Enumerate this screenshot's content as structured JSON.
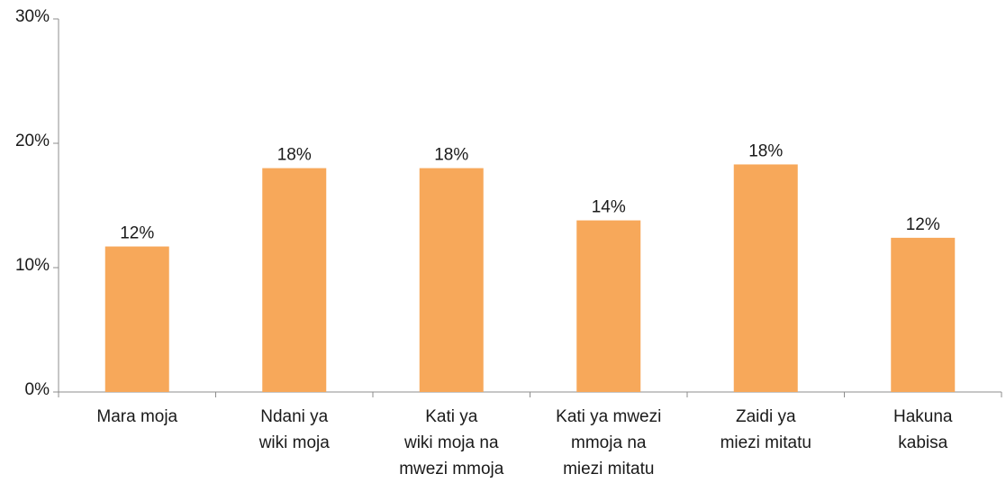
{
  "chart_data": {
    "type": "bar",
    "categories": [
      [
        "Mara moja"
      ],
      [
        "Ndani ya",
        "wiki moja"
      ],
      [
        "Kati ya",
        "wiki moja na",
        "mwezi mmoja"
      ],
      [
        "Kati ya mwezi",
        "mmoja na",
        "miezi mitatu"
      ],
      [
        "Zaidi ya",
        "miezi mitatu"
      ],
      [
        "Hakuna",
        "kabisa"
      ]
    ],
    "values": [
      11.7,
      18.0,
      18.0,
      13.8,
      18.3,
      12.4
    ],
    "value_labels": [
      "12%",
      "18%",
      "18%",
      "14%",
      "18%",
      "12%"
    ],
    "color": "#f7a85a",
    "ylim": [
      0,
      30
    ],
    "yticks": [
      {
        "value": 0,
        "label": "0%"
      },
      {
        "value": 10,
        "label": "10%"
      },
      {
        "value": 20,
        "label": "20%"
      },
      {
        "value": 30,
        "label": "30%"
      }
    ],
    "grid": false
  }
}
